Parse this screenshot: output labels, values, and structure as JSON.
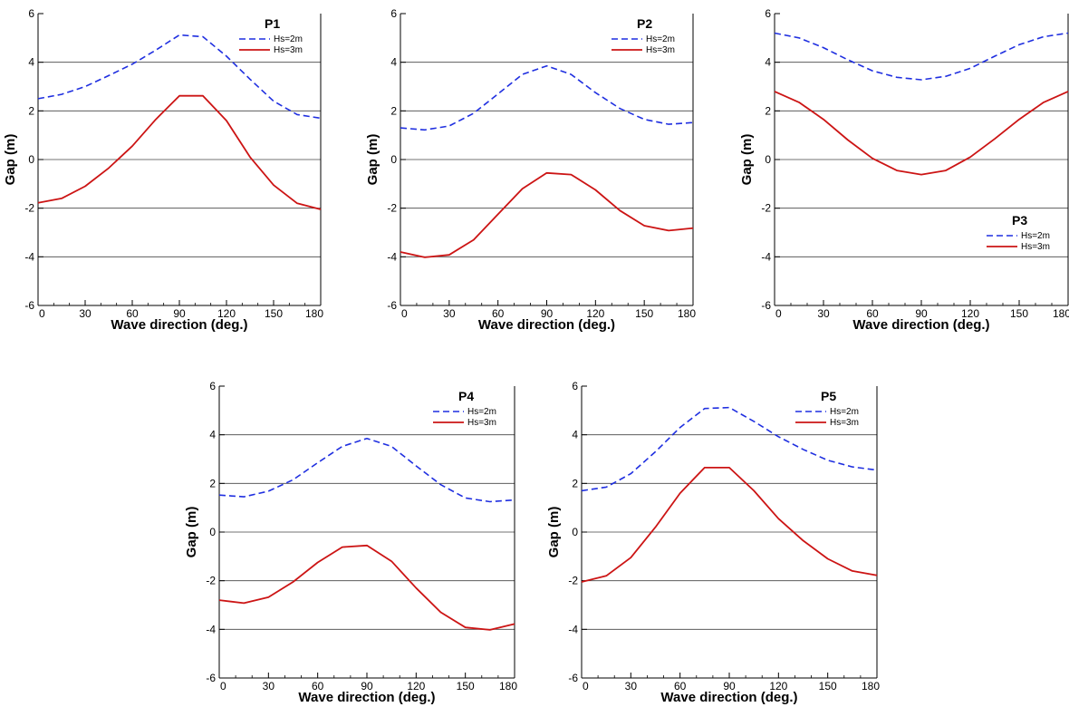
{
  "chart_data": [
    {
      "type": "line",
      "title": "P1",
      "xlabel": "Wave direction (deg.)",
      "ylabel": "Gap (m)",
      "xlim": [
        0,
        180
      ],
      "ylim": [
        -6,
        6
      ],
      "xticks": [
        0,
        30,
        60,
        90,
        120,
        150,
        180
      ],
      "xtick_labels": [
        "0",
        "30",
        "60",
        "90",
        "120",
        "150",
        "180"
      ],
      "yticks": [
        -6,
        -4,
        -2,
        0,
        2,
        4,
        6
      ],
      "ytick_labels": [
        "-6",
        "-4",
        "-2",
        "0",
        "2",
        "4",
        "6"
      ],
      "grid": "horizontal",
      "legend_position": "top-right",
      "x": [
        0,
        15,
        30,
        45,
        60,
        75,
        90,
        105,
        120,
        135,
        150,
        165,
        180
      ],
      "series": [
        {
          "name": "Hs=2m",
          "color": "#1f2fe0",
          "dash": "dashed",
          "values": [
            2.5,
            2.68,
            3.0,
            3.45,
            3.92,
            4.5,
            5.12,
            5.05,
            4.25,
            3.3,
            2.4,
            1.85,
            1.7
          ]
        },
        {
          "name": "Hs=3m",
          "color": "#cc1414",
          "dash": "solid",
          "values": [
            -1.78,
            -1.6,
            -1.1,
            -0.35,
            0.55,
            1.65,
            2.62,
            2.62,
            1.6,
            0.1,
            -1.05,
            -1.8,
            -2.05
          ]
        }
      ]
    },
    {
      "type": "line",
      "title": "P2",
      "xlabel": "Wave direction (deg.)",
      "ylabel": "Gap (m)",
      "xlim": [
        0,
        180
      ],
      "ylim": [
        -6,
        6
      ],
      "xticks": [
        0,
        30,
        60,
        90,
        120,
        150,
        180
      ],
      "xtick_labels": [
        "0",
        "30",
        "60",
        "90",
        "120",
        "150",
        "180"
      ],
      "yticks": [
        -6,
        -4,
        -2,
        0,
        2,
        4,
        6
      ],
      "ytick_labels": [
        "-6",
        "-4",
        "-2",
        "0",
        "2",
        "4",
        "6"
      ],
      "grid": "horizontal",
      "legend_position": "top-right",
      "x": [
        0,
        15,
        30,
        45,
        60,
        75,
        90,
        105,
        120,
        135,
        150,
        165,
        180
      ],
      "series": [
        {
          "name": "Hs=2m",
          "color": "#1f2fe0",
          "dash": "dashed",
          "values": [
            1.3,
            1.22,
            1.38,
            1.9,
            2.7,
            3.5,
            3.85,
            3.5,
            2.75,
            2.1,
            1.65,
            1.45,
            1.52
          ]
        },
        {
          "name": "Hs=3m",
          "color": "#cc1414",
          "dash": "solid",
          "values": [
            -3.8,
            -4.02,
            -3.92,
            -3.3,
            -2.25,
            -1.2,
            -0.55,
            -0.62,
            -1.25,
            -2.1,
            -2.72,
            -2.92,
            -2.82
          ]
        }
      ]
    },
    {
      "type": "line",
      "title": "P3",
      "xlabel": "Wave direction (deg.)",
      "ylabel": "Gap (m)",
      "xlim": [
        0,
        180
      ],
      "ylim": [
        -6,
        6
      ],
      "xticks": [
        0,
        30,
        60,
        90,
        120,
        150,
        180
      ],
      "xtick_labels": [
        "0",
        "30",
        "60",
        "90",
        "120",
        "150",
        "180"
      ],
      "yticks": [
        -6,
        -4,
        -2,
        0,
        2,
        4,
        6
      ],
      "ytick_labels": [
        "-6",
        "-4",
        "-2",
        "0",
        "2",
        "4",
        "6"
      ],
      "grid": "horizontal",
      "legend_position": "bottom-right",
      "x": [
        0,
        15,
        30,
        45,
        60,
        75,
        90,
        105,
        120,
        135,
        150,
        165,
        180
      ],
      "series": [
        {
          "name": "Hs=2m",
          "color": "#1f2fe0",
          "dash": "dashed",
          "values": [
            5.2,
            5.0,
            4.6,
            4.1,
            3.65,
            3.38,
            3.28,
            3.42,
            3.75,
            4.25,
            4.72,
            5.05,
            5.2
          ]
        },
        {
          "name": "Hs=3m",
          "color": "#cc1414",
          "dash": "solid",
          "values": [
            2.8,
            2.35,
            1.65,
            0.8,
            0.05,
            -0.45,
            -0.62,
            -0.45,
            0.1,
            0.85,
            1.65,
            2.35,
            2.8
          ]
        }
      ]
    },
    {
      "type": "line",
      "title": "P4",
      "xlabel": "Wave direction (deg.)",
      "ylabel": "Gap (m)",
      "xlim": [
        0,
        180
      ],
      "ylim": [
        -6,
        6
      ],
      "xticks": [
        0,
        30,
        60,
        90,
        120,
        150,
        180
      ],
      "xtick_labels": [
        "0",
        "30",
        "60",
        "90",
        "120",
        "150",
        "180"
      ],
      "yticks": [
        -6,
        -4,
        -2,
        0,
        2,
        4,
        6
      ],
      "ytick_labels": [
        "-6",
        "-4",
        "-2",
        "0",
        "2",
        "4",
        "6"
      ],
      "grid": "horizontal",
      "legend_position": "top-right",
      "x": [
        0,
        15,
        30,
        45,
        60,
        75,
        90,
        105,
        120,
        135,
        150,
        165,
        180
      ],
      "series": [
        {
          "name": "Hs=2m",
          "color": "#1f2fe0",
          "dash": "dashed",
          "values": [
            1.52,
            1.45,
            1.68,
            2.15,
            2.85,
            3.52,
            3.85,
            3.52,
            2.72,
            1.95,
            1.4,
            1.25,
            1.32
          ]
        },
        {
          "name": "Hs=3m",
          "color": "#cc1414",
          "dash": "solid",
          "values": [
            -2.8,
            -2.92,
            -2.68,
            -2.05,
            -1.25,
            -0.62,
            -0.55,
            -1.2,
            -2.3,
            -3.3,
            -3.92,
            -4.02,
            -3.78
          ]
        }
      ]
    },
    {
      "type": "line",
      "title": "P5",
      "xlabel": "Wave direction (deg.)",
      "ylabel": "Gap (m)",
      "xlim": [
        0,
        180
      ],
      "ylim": [
        -6,
        6
      ],
      "xticks": [
        0,
        30,
        60,
        90,
        120,
        150,
        180
      ],
      "xtick_labels": [
        "0",
        "30",
        "60",
        "90",
        "120",
        "150",
        "180"
      ],
      "yticks": [
        -6,
        -4,
        -2,
        0,
        2,
        4,
        6
      ],
      "ytick_labels": [
        "-6",
        "-4",
        "-2",
        "0",
        "2",
        "4",
        "6"
      ],
      "grid": "horizontal",
      "legend_position": "top-right",
      "x": [
        0,
        15,
        30,
        45,
        60,
        75,
        90,
        105,
        120,
        135,
        150,
        165,
        180
      ],
      "series": [
        {
          "name": "Hs=2m",
          "color": "#1f2fe0",
          "dash": "dashed",
          "values": [
            1.7,
            1.85,
            2.4,
            3.3,
            4.3,
            5.08,
            5.12,
            4.55,
            3.92,
            3.4,
            2.95,
            2.68,
            2.55
          ]
        },
        {
          "name": "Hs=3m",
          "color": "#cc1414",
          "dash": "solid",
          "values": [
            -2.05,
            -1.8,
            -1.05,
            0.2,
            1.6,
            2.65,
            2.65,
            1.7,
            0.55,
            -0.35,
            -1.1,
            -1.6,
            -1.78
          ]
        }
      ]
    }
  ]
}
